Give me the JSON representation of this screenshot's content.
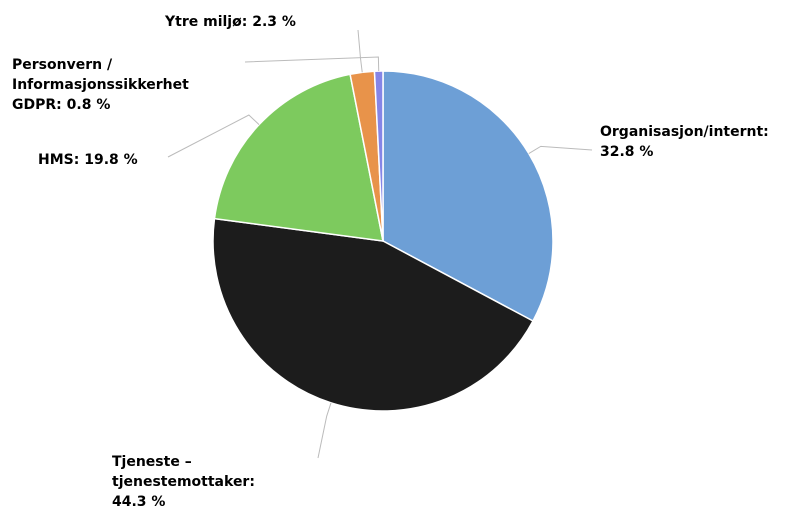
{
  "chart_data": {
    "type": "pie",
    "categories": [
      "Organisasjon/internt",
      "Tjeneste – tjenestemottaker",
      "HMS",
      "Ytre miljø",
      "Personvern / Informasjonssikkerhet GDPR"
    ],
    "values": [
      32.8,
      44.3,
      19.8,
      2.3,
      0.8
    ],
    "value_labels": [
      "32.8 %",
      "44.3 %",
      "19.8 %",
      "2.3 %",
      "0.8 %"
    ],
    "label_separator": ": ",
    "colors": [
      "#6d9fd6",
      "#1c1c1c",
      "#7dca5e",
      "#e8934a",
      "#8585e6"
    ]
  }
}
